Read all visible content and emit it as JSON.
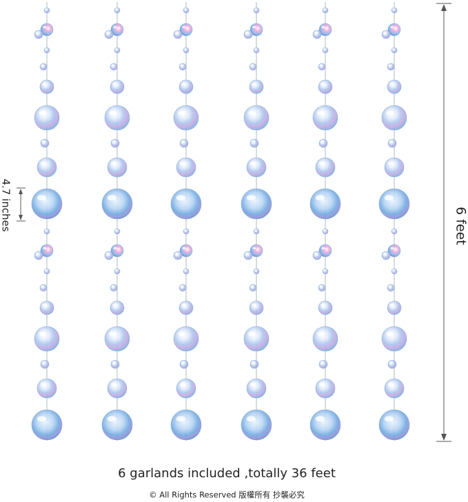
{
  "dimension_labels": {
    "spacing": "4.7 inches",
    "length": "6 feet"
  },
  "caption": "6 garlands included ,totally 36 feet",
  "copyright": "© All Rights Reserved 版權所有 抄襲必究"
}
